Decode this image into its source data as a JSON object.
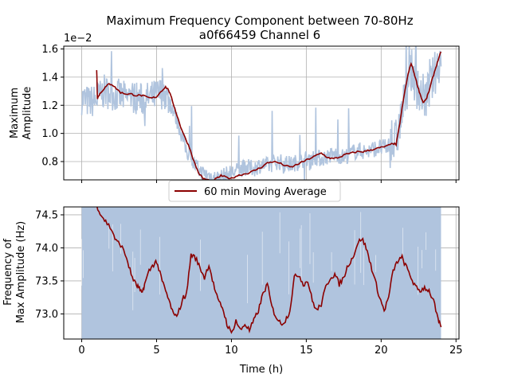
{
  "title": "Maximum Frequency Component between 70-80Hz",
  "subtitle": "a0f66459 Channel 6",
  "colors": {
    "raw": "#b0c4de",
    "avg": "#8b0000",
    "grid": "#b0b0b0"
  },
  "legend": {
    "label": "60 min Moving Average",
    "placement": "between panels"
  },
  "chart_data": [
    {
      "type": "line",
      "panel": "top",
      "title": "Maximum Frequency Component between 70-80Hz",
      "subtitle": "a0f66459 Channel 6",
      "ylabel_line1": "Maximum",
      "ylabel_line2": "Amplitude",
      "exponent_label": "1e−2",
      "ylim": [
        0.67,
        1.62
      ],
      "xlim": [
        -1.2,
        25.2
      ],
      "grid": true,
      "yticks": [
        0.8,
        1.0,
        1.2,
        1.4,
        1.6
      ],
      "ytick_labels": [
        "0.8",
        "1.0",
        "1.2",
        "1.4",
        "1.6"
      ],
      "xticks": [
        0,
        5,
        10,
        15,
        20,
        25
      ],
      "series": [
        {
          "role": "raw",
          "x": [
            0,
            0.5,
            1,
            1.5,
            2,
            2.5,
            3,
            3.5,
            4,
            4.5,
            5,
            5.5,
            6,
            6.5,
            7,
            7.5,
            8,
            8.5,
            9,
            9.5,
            10,
            10.5,
            11,
            11.5,
            12,
            12.5,
            13,
            13.5,
            14,
            14.5,
            15,
            15.5,
            16,
            16.5,
            17,
            17.5,
            18,
            18.5,
            19,
            19.5,
            20,
            20.5,
            21,
            21.5,
            22,
            22.5,
            23,
            23.5,
            24
          ],
          "values": [
            1.25,
            1.22,
            1.24,
            1.3,
            1.28,
            1.27,
            1.25,
            1.26,
            1.24,
            1.25,
            1.27,
            1.3,
            1.2,
            1.05,
            0.88,
            0.78,
            0.72,
            0.7,
            0.68,
            0.7,
            0.72,
            0.74,
            0.76,
            0.75,
            0.78,
            0.77,
            0.8,
            0.79,
            0.78,
            0.8,
            0.82,
            0.83,
            0.82,
            0.84,
            0.85,
            0.83,
            0.86,
            0.88,
            0.87,
            0.89,
            0.9,
            0.9,
            0.95,
            1.2,
            1.45,
            1.3,
            1.25,
            1.4,
            1.55
          ]
        },
        {
          "name": "60 min Moving Average",
          "role": "avg",
          "x": [
            1.0,
            1.05,
            1.2,
            1.5,
            1.8,
            2.0,
            2.3,
            2.6,
            3.0,
            3.3,
            3.6,
            4.0,
            4.3,
            4.6,
            5.0,
            5.3,
            5.6,
            5.8,
            6.0,
            6.3,
            6.6,
            6.9,
            7.2,
            7.5,
            7.8,
            8.1,
            8.4,
            8.7,
            9.0,
            9.3,
            9.6,
            10.0,
            10.4,
            10.8,
            11.2,
            11.6,
            12.0,
            12.4,
            12.8,
            13.2,
            13.6,
            14.0,
            14.4,
            14.8,
            15.2,
            15.6,
            16.0,
            16.4,
            16.8,
            17.2,
            17.6,
            18.0,
            18.4,
            18.8,
            19.2,
            19.6,
            20.0,
            20.4,
            20.8,
            21.0,
            21.2,
            21.4,
            21.6,
            21.8,
            22.0,
            22.2,
            22.4,
            22.6,
            22.8,
            23.0,
            23.2,
            23.4,
            23.6,
            23.8,
            24.0
          ],
          "values": [
            1.45,
            1.25,
            1.28,
            1.32,
            1.35,
            1.35,
            1.32,
            1.29,
            1.28,
            1.28,
            1.27,
            1.27,
            1.26,
            1.25,
            1.26,
            1.3,
            1.33,
            1.31,
            1.25,
            1.15,
            1.05,
            0.97,
            0.9,
            0.8,
            0.72,
            0.68,
            0.67,
            0.66,
            0.68,
            0.7,
            0.69,
            0.68,
            0.7,
            0.71,
            0.72,
            0.74,
            0.76,
            0.79,
            0.8,
            0.79,
            0.77,
            0.76,
            0.78,
            0.8,
            0.82,
            0.84,
            0.86,
            0.83,
            0.82,
            0.83,
            0.85,
            0.86,
            0.87,
            0.87,
            0.88,
            0.89,
            0.9,
            0.91,
            0.93,
            0.92,
            1.04,
            1.18,
            1.31,
            1.42,
            1.5,
            1.43,
            1.35,
            1.28,
            1.22,
            1.24,
            1.3,
            1.38,
            1.45,
            1.52,
            1.58
          ]
        }
      ]
    },
    {
      "type": "line",
      "panel": "bottom",
      "ylabel_line1": "Frequency of",
      "ylabel_line2": "Max Amplitude (Hz)",
      "xlabel": "Time (h)",
      "ylim": [
        72.62,
        74.62
      ],
      "xlim": [
        -1.2,
        25.2
      ],
      "grid": true,
      "yticks": [
        73.0,
        73.5,
        74.0,
        74.5
      ],
      "ytick_labels": [
        "73.0",
        "73.5",
        "74.0",
        "74.5"
      ],
      "xticks": [
        0,
        5,
        10,
        15,
        20,
        25
      ],
      "xtick_labels": [
        "0",
        "5",
        "10",
        "15",
        "20",
        "25"
      ],
      "raw_band": {
        "x_range": [
          0,
          24
        ],
        "y_range": [
          72.62,
          74.62
        ],
        "note_color": "#b0c4de"
      },
      "series": [
        {
          "name": "60 min Moving Average",
          "role": "avg",
          "x": [
            1.0,
            1.3,
            1.6,
            2.0,
            2.3,
            2.6,
            3.0,
            3.3,
            3.6,
            3.8,
            4.0,
            4.2,
            4.5,
            4.8,
            5.0,
            5.3,
            5.6,
            5.9,
            6.2,
            6.5,
            6.8,
            7.0,
            7.3,
            7.6,
            7.9,
            8.2,
            8.5,
            8.8,
            9.1,
            9.4,
            9.7,
            10.0,
            10.3,
            10.6,
            10.9,
            11.2,
            11.5,
            11.8,
            12.1,
            12.4,
            12.7,
            13.0,
            13.3,
            13.6,
            13.9,
            14.2,
            14.5,
            14.8,
            15.1,
            15.4,
            15.7,
            16.0,
            16.3,
            16.6,
            16.9,
            17.2,
            17.5,
            17.8,
            18.1,
            18.4,
            18.7,
            19.0,
            19.3,
            19.6,
            19.9,
            20.2,
            20.5,
            20.8,
            21.1,
            21.4,
            21.7,
            22.0,
            22.3,
            22.6,
            22.9,
            23.2,
            23.5,
            23.8,
            24.0
          ],
          "values": [
            74.65,
            74.5,
            74.4,
            74.28,
            74.1,
            74.05,
            73.85,
            73.6,
            73.45,
            73.4,
            73.3,
            73.45,
            73.65,
            73.75,
            73.8,
            73.55,
            73.35,
            73.15,
            72.95,
            73.05,
            73.25,
            73.3,
            73.9,
            73.85,
            73.7,
            73.55,
            73.75,
            73.45,
            73.2,
            73.1,
            72.85,
            72.7,
            72.9,
            72.75,
            72.85,
            72.75,
            72.9,
            73.05,
            73.3,
            73.45,
            73.1,
            72.95,
            72.85,
            72.9,
            73.05,
            73.55,
            73.6,
            73.45,
            73.5,
            73.2,
            73.05,
            73.15,
            73.4,
            73.55,
            73.6,
            73.45,
            73.55,
            73.75,
            73.85,
            74.05,
            74.15,
            74.0,
            73.75,
            73.5,
            73.25,
            73.05,
            73.25,
            73.65,
            73.8,
            73.85,
            73.7,
            73.55,
            73.4,
            73.35,
            73.4,
            73.35,
            73.2,
            72.9,
            72.8
          ]
        }
      ]
    }
  ]
}
